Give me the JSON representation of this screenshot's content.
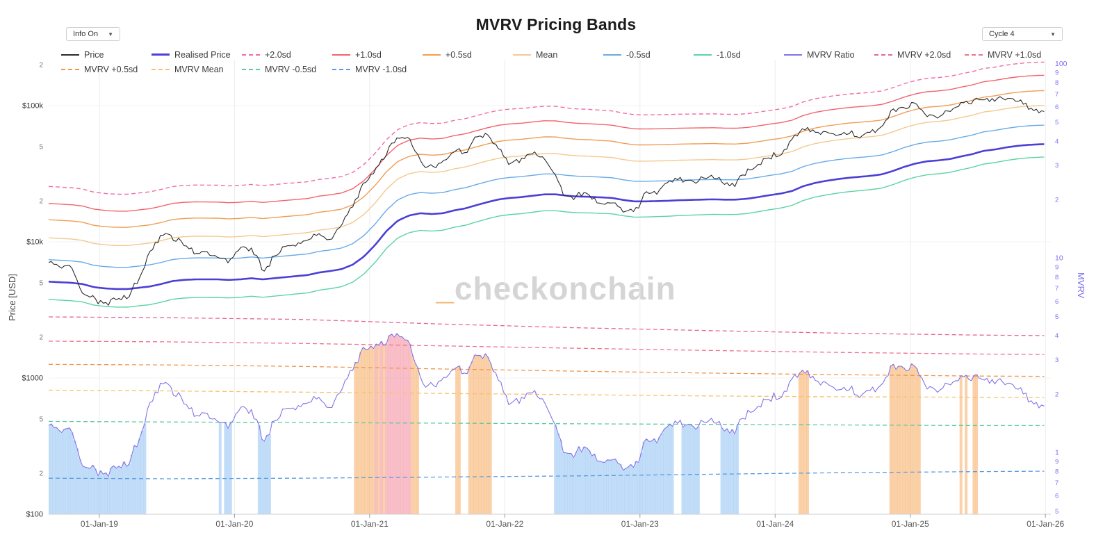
{
  "header": {
    "title": "MVRV Pricing Bands",
    "info_dropdown": {
      "label": "Info On",
      "arrow": "▼"
    },
    "cycle_dropdown": {
      "label": "Cycle 4",
      "arrow": "▼"
    }
  },
  "watermark": {
    "prefix": "_",
    "text": "checkonchain"
  },
  "colors": {
    "price": "#2b2b2b",
    "realised": "#4b3fd6",
    "plus2": "#f06ba8",
    "plus1": "#f2636d",
    "plus05": "#ee9e55",
    "mean": "#f3c98f",
    "minus05": "#66abe8",
    "minus1": "#5bd3a4",
    "mvrv_ratio": "#8074e8",
    "mvrv_plus2": "#e8639c",
    "mvrv_plus1": "#f0708c",
    "mvrv_plus05": "#f0954e",
    "mvrv_mean": "#f6c26e",
    "mvrv_minus05": "#5cc9a2",
    "mvrv_minus1": "#5b9be0",
    "fill_blue": "#8fc1f2",
    "fill_orange": "#f6ab60",
    "fill_pink": "#f48a9b",
    "grid": "#ececec",
    "axis_text": "#555555",
    "mvrv_axis_text": "#7c6ff0"
  },
  "legend": {
    "rows": [
      [
        {
          "label": "Price",
          "color_key": "price",
          "dash": false,
          "width": 2
        },
        {
          "label": "Realised Price",
          "color_key": "realised",
          "dash": false,
          "width": 3
        },
        {
          "label": "+2.0sd",
          "color_key": "plus2",
          "dash": true,
          "width": 2
        },
        {
          "label": "+1.0sd",
          "color_key": "plus1",
          "dash": false,
          "width": 2
        },
        {
          "label": "+0.5sd",
          "color_key": "plus05",
          "dash": false,
          "width": 2
        },
        {
          "label": "Mean",
          "color_key": "mean",
          "dash": false,
          "width": 2
        },
        {
          "label": "-0.5sd",
          "color_key": "minus05",
          "dash": false,
          "width": 2
        },
        {
          "label": "-1.0sd",
          "color_key": "minus1",
          "dash": false,
          "width": 2
        },
        {
          "label": "MVRV Ratio",
          "color_key": "mvrv_ratio",
          "dash": false,
          "width": 2
        },
        {
          "label": "MVRV +2.0sd",
          "color_key": "mvrv_plus2",
          "dash": true,
          "width": 2
        },
        {
          "label": "MVRV +1.0sd",
          "color_key": "mvrv_plus1",
          "dash": true,
          "width": 2
        }
      ],
      [
        {
          "label": "MVRV +0.5sd",
          "color_key": "mvrv_plus05",
          "dash": true,
          "width": 2
        },
        {
          "label": "MVRV Mean",
          "color_key": "mvrv_mean",
          "dash": true,
          "width": 2
        },
        {
          "label": "MVRV -0.5sd",
          "color_key": "mvrv_minus05",
          "dash": true,
          "width": 2
        },
        {
          "label": "MVRV -1.0sd",
          "color_key": "mvrv_minus1",
          "dash": true,
          "width": 2
        }
      ]
    ]
  },
  "axes": {
    "price": {
      "title": "Price [USD]",
      "ticks": [
        {
          "v": 200000,
          "l": "2"
        },
        {
          "v": 100000,
          "l": "$100k",
          "major": true
        },
        {
          "v": 50000,
          "l": "5"
        },
        {
          "v": 20000,
          "l": "2"
        },
        {
          "v": 10000,
          "l": "$10k",
          "major": true
        },
        {
          "v": 5000,
          "l": "5"
        },
        {
          "v": 2000,
          "l": "2"
        },
        {
          "v": 1000,
          "l": "$1000",
          "major": true
        },
        {
          "v": 500,
          "l": "5"
        },
        {
          "v": 200,
          "l": "2"
        },
        {
          "v": 100,
          "l": "$100",
          "major": true
        }
      ]
    },
    "mvrv": {
      "title": "MVRV",
      "ticks": [
        {
          "v": 100,
          "l": "100",
          "major": true
        },
        {
          "v": 90,
          "l": "9"
        },
        {
          "v": 80,
          "l": "8"
        },
        {
          "v": 70,
          "l": "7"
        },
        {
          "v": 60,
          "l": "6"
        },
        {
          "v": 50,
          "l": "5"
        },
        {
          "v": 40,
          "l": "4"
        },
        {
          "v": 30,
          "l": "3"
        },
        {
          "v": 20,
          "l": "2"
        },
        {
          "v": 10,
          "l": "10",
          "major": true
        },
        {
          "v": 9,
          "l": "9"
        },
        {
          "v": 8,
          "l": "8"
        },
        {
          "v": 7,
          "l": "7"
        },
        {
          "v": 6,
          "l": "6"
        },
        {
          "v": 5,
          "l": "5"
        },
        {
          "v": 4,
          "l": "4"
        },
        {
          "v": 3,
          "l": "3"
        },
        {
          "v": 2,
          "l": "2"
        },
        {
          "v": 1,
          "l": "1",
          "major": true
        },
        {
          "v": 0.9,
          "l": "9"
        },
        {
          "v": 0.8,
          "l": "8"
        },
        {
          "v": 0.7,
          "l": "7"
        },
        {
          "v": 0.6,
          "l": "6"
        },
        {
          "v": 0.5,
          "l": "5"
        }
      ]
    },
    "x": {
      "ticks": [
        {
          "t": 2019.0,
          "l": "01-Jan-19"
        },
        {
          "t": 2020.0,
          "l": "01-Jan-20"
        },
        {
          "t": 2021.0,
          "l": "01-Jan-21"
        },
        {
          "t": 2022.0,
          "l": "01-Jan-22"
        },
        {
          "t": 2023.0,
          "l": "01-Jan-23"
        },
        {
          "t": 2024.0,
          "l": "01-Jan-24"
        },
        {
          "t": 2025.0,
          "l": "01-Jan-25"
        },
        {
          "t": 2026.0,
          "l": "01-Jan-26"
        }
      ]
    }
  },
  "chart_data": {
    "type": "line",
    "title": "MVRV Pricing Bands",
    "log_scale": true,
    "x_start": 2018.625,
    "x_step_years": 0.0833333,
    "xlim": [
      2018.625,
      2026.04
    ],
    "ylim_price": [
      100,
      217000
    ],
    "ylim_mvrv": [
      0.483,
      105
    ],
    "price_monthly": [
      7000,
      6600,
      6400,
      4300,
      3800,
      3500,
      3800,
      4000,
      5300,
      8200,
      11500,
      10500,
      9900,
      8300,
      8700,
      7500,
      7200,
      9300,
      8900,
      6200,
      7600,
      9300,
      9300,
      10200,
      11700,
      10600,
      13200,
      18500,
      27000,
      33500,
      46000,
      57000,
      57500,
      38500,
      34500,
      38000,
      47000,
      44500,
      60000,
      60000,
      47500,
      38000,
      40500,
      44500,
      39800,
      30500,
      20500,
      22500,
      21500,
      19200,
      20000,
      16800,
      16700,
      22500,
      23200,
      27500,
      29000,
      27000,
      29500,
      29700,
      26500,
      26500,
      33500,
      37000,
      43000,
      42800,
      56000,
      69500,
      63500,
      66500,
      63000,
      63500,
      59000,
      62500,
      69000,
      92000,
      96000,
      101000,
      86000,
      83500,
      92000,
      105000,
      106000,
      114000,
      110500,
      113500,
      113000,
      98000,
      91000,
      90000
    ],
    "realised_monthly": [
      5100,
      5050,
      5000,
      4900,
      4650,
      4550,
      4500,
      4500,
      4600,
      4700,
      4900,
      5150,
      5250,
      5300,
      5300,
      5300,
      5250,
      5300,
      5400,
      5300,
      5400,
      5500,
      5600,
      5700,
      5950,
      6100,
      6300,
      6800,
      7800,
      9500,
      12000,
      14300,
      15600,
      16200,
      16000,
      16200,
      17000,
      17600,
      18600,
      19600,
      20500,
      21000,
      21300,
      21800,
      22300,
      22300,
      21800,
      21500,
      21400,
      21200,
      21000,
      20300,
      19800,
      19800,
      19900,
      20000,
      20200,
      20300,
      20400,
      20500,
      20400,
      20400,
      20700,
      21300,
      22000,
      22600,
      23600,
      25600,
      27000,
      28000,
      28800,
      29500,
      30000,
      30500,
      31300,
      33200,
      35600,
      37600,
      39000,
      39600,
      40500,
      42300,
      44000,
      46500,
      47600,
      49300,
      50600,
      51500,
      52000,
      52200
    ],
    "mvrv_band_keypoints": {
      "dates": [
        2018.6,
        2019.5,
        2020.5,
        2021.5,
        2022.5,
        2023.5,
        2024.5,
        2025.5,
        2026.1
      ],
      "plus2": [
        5.0,
        4.95,
        4.85,
        4.6,
        4.4,
        4.25,
        4.12,
        4.03,
        4.0
      ],
      "plus1": [
        3.75,
        3.72,
        3.65,
        3.55,
        3.45,
        3.36,
        3.28,
        3.22,
        3.2
      ],
      "plus05": [
        2.85,
        2.83,
        2.78,
        2.7,
        2.63,
        2.57,
        2.52,
        2.48,
        2.47
      ],
      "mean": [
        2.1,
        2.08,
        2.05,
        2.02,
        1.99,
        1.96,
        1.94,
        1.93,
        1.92
      ],
      "minus05": [
        1.45,
        1.44,
        1.43,
        1.42,
        1.41,
        1.4,
        1.39,
        1.38,
        1.38
      ],
      "minus1": [
        0.74,
        0.735,
        0.74,
        0.75,
        0.76,
        0.775,
        0.79,
        0.8,
        0.805
      ]
    },
    "derived": {
      "mvrv_ratio": "Price / Realised Price",
      "price_bands": "Realised Price × MVRV band multiplier"
    },
    "fill_rules": {
      "blue_below": "minus05",
      "orange_above": "plus05",
      "pink_above": "plus1"
    }
  }
}
